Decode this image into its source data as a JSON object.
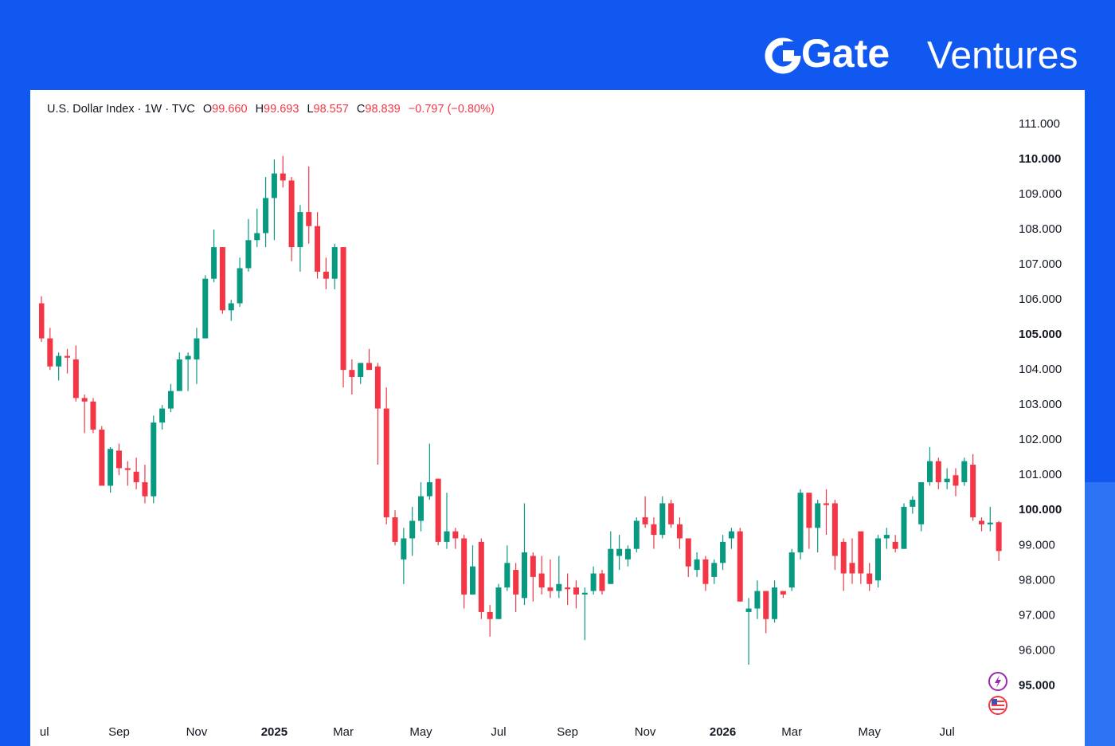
{
  "brand": {
    "name": "Gate",
    "suffix": "Ventures"
  },
  "header": {
    "symbol": "U.S. Dollar Index · 1W · TVC",
    "o_label": "O",
    "o": "99.660",
    "h_label": "H",
    "h": "99.693",
    "l_label": "L",
    "l": "98.557",
    "c_label": "C",
    "c": "98.839",
    "change": "−0.797 (−0.80%)"
  },
  "chart_data": {
    "type": "candlestick",
    "colors": {
      "up": "#089981",
      "down": "#f23645"
    },
    "categories": [
      "Jul",
      null,
      null,
      null,
      null,
      null,
      null,
      null,
      null,
      "Sep",
      null,
      null,
      null,
      null,
      null,
      null,
      null,
      null,
      "Nov",
      null,
      null,
      null,
      null,
      null,
      null,
      null,
      null,
      "2025",
      null,
      null,
      null,
      null,
      null,
      null,
      null,
      "Mar",
      null,
      null,
      null,
      null,
      null,
      null,
      null,
      null,
      "May",
      null,
      null,
      null,
      null,
      null,
      null,
      null,
      null,
      "Jul",
      null,
      null,
      null,
      null,
      null,
      null,
      null,
      "Sep",
      null,
      null,
      null,
      null,
      null,
      null,
      null,
      null,
      "Nov",
      null,
      null,
      null,
      null,
      null,
      null,
      null,
      null,
      "2026",
      null,
      null,
      null,
      null,
      null,
      null,
      null,
      "Mar",
      null,
      null,
      null,
      null,
      null,
      null,
      null,
      null,
      "May",
      null,
      null,
      null,
      null,
      null,
      null,
      null,
      null,
      "Jul",
      null,
      null,
      null,
      null,
      null,
      null
    ],
    "open": [
      105.9,
      104.9,
      104.1,
      104.4,
      104.3,
      103.2,
      103.1,
      102.3,
      100.7,
      101.7,
      101.2,
      101.1,
      100.8,
      100.4,
      102.5,
      102.9,
      103.4,
      104.3,
      104.3,
      104.9,
      106.6,
      107.5,
      105.7,
      105.9,
      106.9,
      107.7,
      107.9,
      108.9,
      109.6,
      109.4,
      107.5,
      108.5,
      108.1,
      106.8,
      106.6,
      107.5,
      104.0,
      103.8,
      104.2,
      104.1,
      102.9,
      99.8,
      98.6,
      99.2,
      99.7,
      100.4,
      100.9,
      99.1,
      99.4,
      99.2,
      97.6,
      99.1,
      97.1,
      96.9,
      97.8,
      98.3,
      97.5,
      98.7,
      98.2,
      97.8,
      97.7,
      97.8,
      97.8,
      97.6,
      97.7,
      98.2,
      97.9,
      98.7,
      98.6,
      98.9,
      99.8,
      99.6,
      99.3,
      100.2,
      99.6,
      99.2,
      98.3,
      98.6,
      98.1,
      98.5,
      99.2,
      99.4,
      97.1,
      97.2,
      97.7,
      96.9,
      97.7,
      97.8,
      98.8,
      100.5,
      99.5,
      100.2,
      100.2,
      99.1,
      98.5,
      99.4,
      98.2,
      98.0,
      99.2,
      99.1,
      98.9,
      100.1,
      99.6,
      100.8,
      101.4,
      100.8,
      101.0,
      100.8,
      101.3,
      99.7,
      99.6,
      99.66
    ],
    "high": [
      106.1,
      105.2,
      104.5,
      104.6,
      104.7,
      103.3,
      103.2,
      102.4,
      101.8,
      101.9,
      101.4,
      101.5,
      101.3,
      102.7,
      103.0,
      103.6,
      104.5,
      104.5,
      105.2,
      106.7,
      108.0,
      107.5,
      106.0,
      107.2,
      108.3,
      108.6,
      109.5,
      110.0,
      110.1,
      109.5,
      108.7,
      109.8,
      108.5,
      107.2,
      107.6,
      107.5,
      104.3,
      104.2,
      104.6,
      104.2,
      103.5,
      100.0,
      99.5,
      100.1,
      100.8,
      101.9,
      100.9,
      100.5,
      99.5,
      99.3,
      99.0,
      99.2,
      97.3,
      97.9,
      99.0,
      98.5,
      100.2,
      98.8,
      98.7,
      98.6,
      98.7,
      98.2,
      98.0,
      97.8,
      98.4,
      98.3,
      99.4,
      99.3,
      99.0,
      99.8,
      100.4,
      99.8,
      100.4,
      100.3,
      99.8,
      99.2,
      98.8,
      98.7,
      98.6,
      99.3,
      99.5,
      99.5,
      97.5,
      98.0,
      97.7,
      98.0,
      97.7,
      98.9,
      100.6,
      100.5,
      100.3,
      100.6,
      100.3,
      99.2,
      99.2,
      99.4,
      98.5,
      99.3,
      99.5,
      99.3,
      100.2,
      100.4,
      100.8,
      101.8,
      101.5,
      101.2,
      101.2,
      101.5,
      101.6,
      99.8,
      100.1,
      99.693
    ],
    "low": [
      104.8,
      104.0,
      103.7,
      103.9,
      103.1,
      102.2,
      102.2,
      100.7,
      100.5,
      101.0,
      100.7,
      100.6,
      100.2,
      100.2,
      102.3,
      102.8,
      103.4,
      103.4,
      103.6,
      104.9,
      106.5,
      105.6,
      105.4,
      105.8,
      106.8,
      107.5,
      107.5,
      107.7,
      109.2,
      107.1,
      106.8,
      107.6,
      106.6,
      106.3,
      106.3,
      103.5,
      103.3,
      103.6,
      104.0,
      101.3,
      99.6,
      99.0,
      97.9,
      98.7,
      99.4,
      100.3,
      99.0,
      98.9,
      98.9,
      97.2,
      97.6,
      96.9,
      96.4,
      96.9,
      97.7,
      97.1,
      97.3,
      97.4,
      97.6,
      97.5,
      97.5,
      97.3,
      97.2,
      96.3,
      97.6,
      97.6,
      97.9,
      98.3,
      98.4,
      98.8,
      99.5,
      98.9,
      99.2,
      99.5,
      98.9,
      98.1,
      98.1,
      97.7,
      97.9,
      98.3,
      98.9,
      97.4,
      95.6,
      96.9,
      96.5,
      96.8,
      97.5,
      97.7,
      98.6,
      98.9,
      98.8,
      99.3,
      98.3,
      97.7,
      97.9,
      97.9,
      97.7,
      97.8,
      98.9,
      98.8,
      98.9,
      99.9,
      99.4,
      100.7,
      100.6,
      100.6,
      100.4,
      100.7,
      99.7,
      99.4,
      99.4,
      98.557
    ],
    "close": [
      104.9,
      104.1,
      104.4,
      104.35,
      103.2,
      103.1,
      102.3,
      100.7,
      101.75,
      101.2,
      101.15,
      100.8,
      100.4,
      102.5,
      102.9,
      103.4,
      104.3,
      104.4,
      104.9,
      106.6,
      107.5,
      105.7,
      105.9,
      106.9,
      107.7,
      107.9,
      108.9,
      109.6,
      109.4,
      107.5,
      108.5,
      108.1,
      106.8,
      106.6,
      107.5,
      104.0,
      103.8,
      104.2,
      104.0,
      102.9,
      99.8,
      99.1,
      99.2,
      99.7,
      100.4,
      100.8,
      99.1,
      99.4,
      99.2,
      97.6,
      98.4,
      97.1,
      96.9,
      97.8,
      98.5,
      97.6,
      98.8,
      98.1,
      97.8,
      97.7,
      97.9,
      97.75,
      97.6,
      97.65,
      98.2,
      97.7,
      98.9,
      98.9,
      98.9,
      99.7,
      99.6,
      99.3,
      100.2,
      99.6,
      99.2,
      98.4,
      98.6,
      97.9,
      98.5,
      99.1,
      99.4,
      97.4,
      97.2,
      97.7,
      96.9,
      97.8,
      97.6,
      98.8,
      100.5,
      99.5,
      100.2,
      100.15,
      98.7,
      98.2,
      98.2,
      98.2,
      97.9,
      99.2,
      99.3,
      98.9,
      100.1,
      100.3,
      100.8,
      101.4,
      100.8,
      100.9,
      100.7,
      101.4,
      99.8,
      99.6,
      99.65,
      98.839
    ],
    "ylim": [
      94.1,
      111.5
    ],
    "yticks": [
      {
        "value": 111,
        "label": "111.000"
      },
      {
        "value": 110,
        "label": "110.000"
      },
      {
        "value": 109,
        "label": "109.000"
      },
      {
        "value": 108,
        "label": "108.000"
      },
      {
        "value": 107,
        "label": "107.000"
      },
      {
        "value": 106,
        "label": "106.000"
      },
      {
        "value": 105,
        "label": "105.000"
      },
      {
        "value": 104,
        "label": "104.000"
      },
      {
        "value": 103,
        "label": "103.000"
      },
      {
        "value": 102,
        "label": "102.000"
      },
      {
        "value": 101,
        "label": "101.000"
      },
      {
        "value": 100,
        "label": "100.000"
      },
      {
        "value": 99,
        "label": "99.000"
      },
      {
        "value": 98,
        "label": "98.000"
      },
      {
        "value": 97,
        "label": "97.000"
      },
      {
        "value": 96,
        "label": "96.000"
      },
      {
        "value": 95,
        "label": "95.000"
      }
    ],
    "grid": false
  }
}
